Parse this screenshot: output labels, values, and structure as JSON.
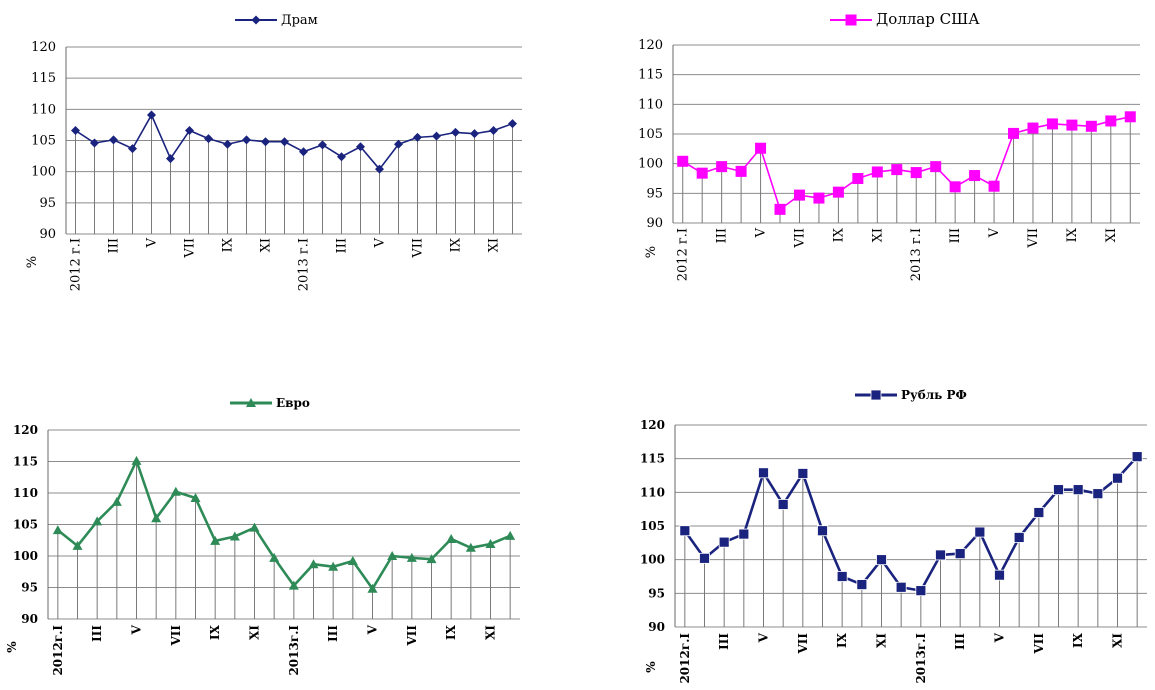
{
  "chart_data": [
    {
      "type": "line",
      "legend": "Драм",
      "color": "#1a237e",
      "marker": "diamond",
      "ylabel": "%",
      "ylim": [
        90,
        120
      ],
      "yticks": [
        "120",
        "115",
        "110",
        "105",
        "100",
        "95",
        "90"
      ],
      "categories": [
        "2012 г.I",
        "",
        "III",
        "",
        "V",
        "",
        "VII",
        "",
        "IX",
        "",
        "XI",
        "",
        "2013 г.I",
        "",
        "III",
        "",
        "V",
        "",
        "VII",
        "",
        "IX",
        "",
        "XI",
        ""
      ],
      "values": [
        106.6,
        104.6,
        105.1,
        103.7,
        109.1,
        102.1,
        106.6,
        105.3,
        104.4,
        105.1,
        104.8,
        104.8,
        103.2,
        104.3,
        102.4,
        104.0,
        100.4,
        104.4,
        105.5,
        105.7,
        106.3,
        106.1,
        106.6,
        107.7
      ]
    },
    {
      "type": "line",
      "legend": "Доллар США",
      "color": "#ff00ff",
      "marker": "square",
      "ylabel": "%",
      "ylim": [
        90,
        120
      ],
      "yticks": [
        "120",
        "115",
        "110",
        "105",
        "100",
        "95",
        "90"
      ],
      "categories": [
        "2012 г.I",
        "",
        "III",
        "",
        "V",
        "",
        "VII",
        "",
        "IX",
        "",
        "XI",
        "",
        "2013 г.I",
        "",
        "III",
        "",
        "V",
        "",
        "VII",
        "",
        "IX",
        "",
        "XI",
        ""
      ],
      "values": [
        100.4,
        98.4,
        99.5,
        98.7,
        102.6,
        92.3,
        94.7,
        94.2,
        95.2,
        97.5,
        98.6,
        99.0,
        98.5,
        99.5,
        96.1,
        98.0,
        96.2,
        105.1,
        106.0,
        106.7,
        106.5,
        106.3,
        107.2,
        107.9
      ]
    },
    {
      "type": "line",
      "legend": "Евро",
      "color": "#2e8b57",
      "marker": "triangle",
      "ylabel": "%",
      "ylim": [
        90,
        120
      ],
      "yticks": [
        "120",
        "115",
        "110",
        "105",
        "100",
        "95",
        "90"
      ],
      "categories": [
        "2012г.I",
        "",
        "III",
        "",
        "V",
        "",
        "VII",
        "",
        "IX",
        "",
        "XI",
        "",
        "2013г.I",
        "",
        "III",
        "",
        "V",
        "",
        "VII",
        "",
        "IX",
        "",
        "XI",
        ""
      ],
      "values": [
        104.1,
        101.6,
        105.5,
        108.6,
        115.1,
        106.0,
        110.2,
        109.2,
        102.4,
        103.1,
        104.5,
        99.7,
        95.3,
        98.7,
        98.3,
        99.2,
        94.8,
        100.0,
        99.7,
        99.5,
        102.7,
        101.3,
        101.9,
        103.2
      ]
    },
    {
      "type": "line",
      "legend": "Рубль РФ",
      "color": "#1a237e",
      "marker": "square",
      "ylabel": "%",
      "ylim": [
        90,
        120
      ],
      "yticks": [
        "120",
        "115",
        "110",
        "105",
        "100",
        "95",
        "90"
      ],
      "categories": [
        "2012г.I",
        "",
        "III",
        "",
        "V",
        "",
        "VII",
        "",
        "IX",
        "",
        "XI",
        "",
        "2013г.I",
        "",
        "III",
        "",
        "V",
        "",
        "VII",
        "",
        "IX",
        "",
        "XI",
        ""
      ],
      "values": [
        104.3,
        100.2,
        102.6,
        103.8,
        112.9,
        108.2,
        112.8,
        104.3,
        97.5,
        96.3,
        100.0,
        95.9,
        95.4,
        100.7,
        100.9,
        104.1,
        97.7,
        103.3,
        107.0,
        110.4,
        110.4,
        109.8,
        112.1,
        115.3
      ]
    }
  ]
}
